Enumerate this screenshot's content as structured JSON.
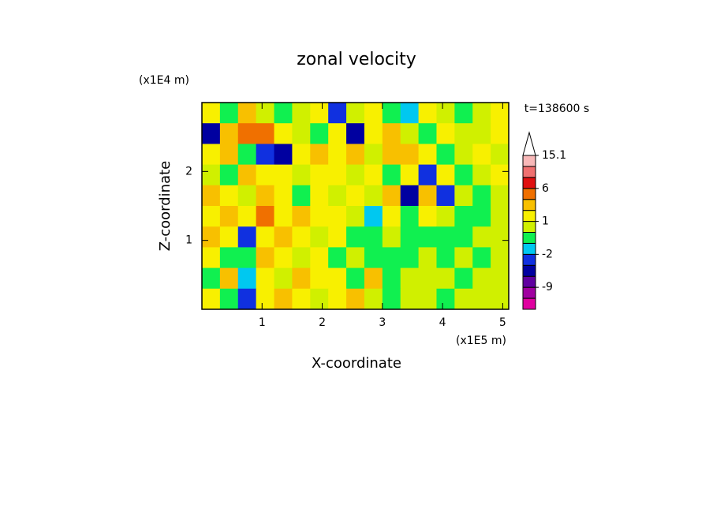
{
  "chart_data": {
    "type": "heatmap",
    "title": "zonal velocity",
    "x_label": "X-coordinate",
    "y_label": "Z-coordinate",
    "x_unit": "(x1E5 m)",
    "y_unit": "(x1E4 m)",
    "annotation": "t=138600 s",
    "xlim": [
      0,
      5.1
    ],
    "ylim": [
      0,
      3
    ],
    "xticks": [
      1,
      2,
      3,
      4,
      5
    ],
    "yticks": [
      1,
      2
    ],
    "z": [
      [
        1,
        -1,
        2,
        0,
        -1,
        0,
        1,
        -3,
        0,
        1,
        -1,
        -2,
        1,
        0,
        -1,
        0,
        1
      ],
      [
        -5,
        2,
        4,
        4,
        1,
        0,
        -1,
        1,
        -5,
        1,
        2,
        0,
        -1,
        1,
        0,
        0,
        1
      ],
      [
        1,
        2,
        -1,
        -4,
        -5,
        1,
        2,
        1,
        2,
        0,
        2,
        3,
        1,
        -1,
        0,
        1,
        0
      ],
      [
        0,
        -1,
        2,
        1,
        1,
        0,
        1,
        1,
        0,
        1,
        -1,
        1,
        -4,
        1,
        -1,
        0,
        1
      ],
      [
        3,
        1,
        0,
        2,
        1,
        -1,
        1,
        0,
        1,
        0,
        2,
        -5,
        2,
        -4,
        0,
        -1,
        0
      ],
      [
        1,
        3,
        1,
        4,
        1,
        2,
        1,
        1,
        0,
        -2,
        1,
        -1,
        1,
        0,
        -1,
        -1,
        0
      ],
      [
        2,
        1,
        -4,
        1,
        2,
        1,
        0,
        1,
        -1,
        -1,
        0.5,
        -0.5,
        -0.5,
        -0.5,
        -0.5,
        0.5,
        0.5
      ],
      [
        1,
        -1,
        -1,
        2,
        1,
        0,
        1,
        -1,
        0,
        -1,
        -0.5,
        -0.5,
        0.5,
        -0.5,
        0.5,
        -0.5,
        0.5
      ],
      [
        -1,
        2,
        -2,
        1,
        0,
        2,
        1,
        1,
        -1,
        2,
        -0.5,
        0.5,
        0.5,
        0.5,
        -0.5,
        0.5,
        0.5
      ],
      [
        1,
        -1,
        -4,
        1,
        2,
        1,
        0,
        1,
        2,
        0,
        -0.5,
        0.5,
        0.5,
        -0.5,
        0.5,
        0.5,
        0.5
      ]
    ],
    "levels": [
      -15,
      -12,
      -9,
      -6,
      -4,
      -2,
      -1,
      0,
      1,
      2,
      4,
      6,
      9,
      12,
      15.1
    ],
    "colors": [
      "#e000a0",
      "#a000a0",
      "#6000a0",
      "#0000a0",
      "#1030e0",
      "#00c8f0",
      "#10f050",
      "#d0f000",
      "#f8f000",
      "#f8c000",
      "#f07000",
      "#e01010",
      "#f07070",
      "#f8b8b8"
    ],
    "colorbar_ticks": [
      15.1,
      6,
      1,
      -2,
      -9
    ]
  }
}
